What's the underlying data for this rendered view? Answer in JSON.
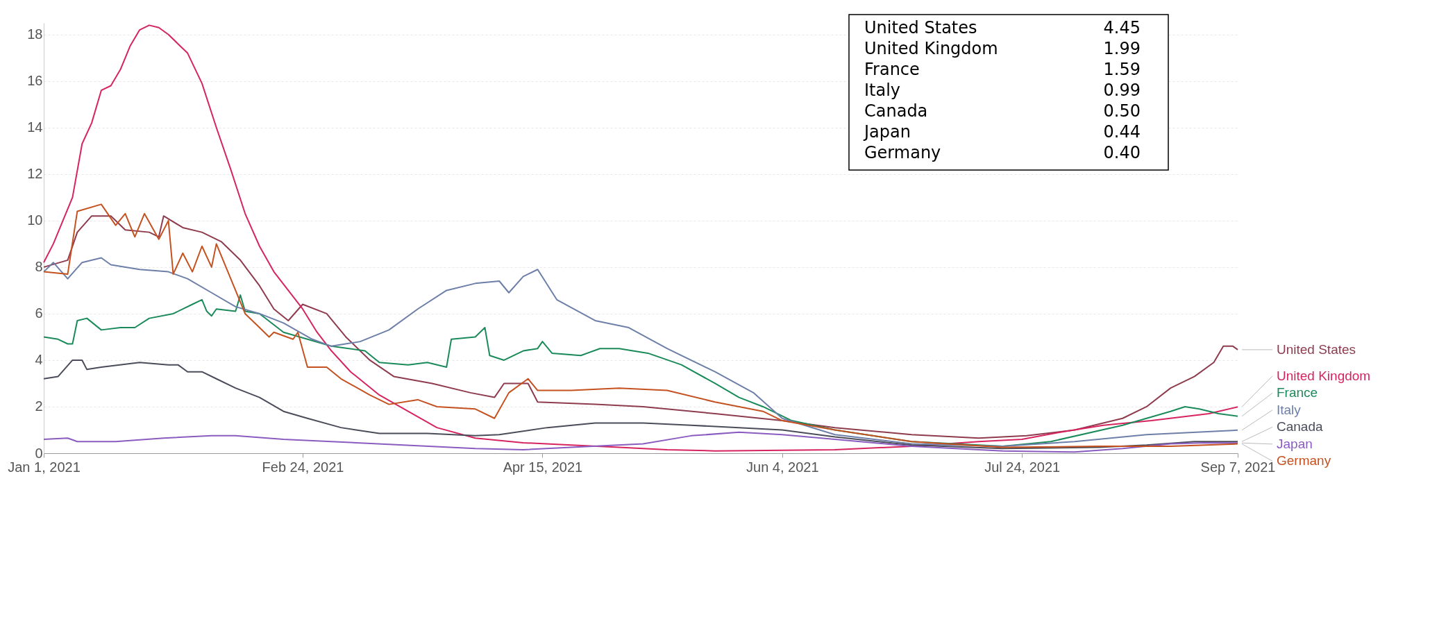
{
  "chart_data": {
    "type": "line",
    "xlim": [
      "2021-01-01",
      "2021-09-07"
    ],
    "xticks": [
      {
        "value": "2021-01-01",
        "label": "Jan 1, 2021"
      },
      {
        "value": "2021-02-24",
        "label": "Feb 24, 2021"
      },
      {
        "value": "2021-04-15",
        "label": "Apr 15, 2021"
      },
      {
        "value": "2021-06-04",
        "label": "Jun 4, 2021"
      },
      {
        "value": "2021-07-24",
        "label": "Jul 24, 2021"
      },
      {
        "value": "2021-09-07",
        "label": "Sep 7, 2021"
      }
    ],
    "ylim": [
      0,
      18.5
    ],
    "yticks": [
      0,
      2,
      4,
      6,
      8,
      10,
      12,
      14,
      16,
      18
    ],
    "grid": "y",
    "legend": "right",
    "line_style": "solid",
    "marker": "none",
    "annotations": [
      "United States 4.45",
      "United Kingdom 1.99",
      "France 1.59",
      "Italy 0.99",
      "Canada 0.50",
      "Japan 0.44",
      "Germany 0.40"
    ],
    "series": [
      {
        "name": "United States",
        "color": "#8e3b4e",
        "x": [
          "2021-01-01",
          "2021-01-06",
          "2021-01-08",
          "2021-01-11",
          "2021-01-15",
          "2021-01-18",
          "2021-01-23",
          "2021-01-25",
          "2021-01-26",
          "2021-01-30",
          "2021-02-03",
          "2021-02-07",
          "2021-02-11",
          "2021-02-15",
          "2021-02-18",
          "2021-02-21",
          "2021-02-24",
          "2021-03-01",
          "2021-03-05",
          "2021-03-10",
          "2021-03-15",
          "2021-03-23",
          "2021-03-31",
          "2021-04-05",
          "2021-04-07",
          "2021-04-12",
          "2021-04-14",
          "2021-04-26",
          "2021-05-06",
          "2021-05-21",
          "2021-06-04",
          "2021-06-15",
          "2021-07-01",
          "2021-07-15",
          "2021-07-25",
          "2021-08-04",
          "2021-08-14",
          "2021-08-19",
          "2021-08-24",
          "2021-08-29",
          "2021-09-02",
          "2021-09-04",
          "2021-09-06",
          "2021-09-07"
        ],
        "values": [
          8.0,
          8.3,
          9.5,
          10.2,
          10.2,
          9.6,
          9.5,
          9.3,
          10.2,
          9.7,
          9.5,
          9.1,
          8.3,
          7.2,
          6.2,
          5.7,
          6.4,
          6.0,
          5.0,
          4.0,
          3.3,
          3.0,
          2.6,
          2.4,
          3.0,
          3.0,
          2.2,
          2.1,
          2.0,
          1.7,
          1.4,
          1.1,
          0.8,
          0.65,
          0.75,
          1.0,
          1.5,
          2.0,
          2.8,
          3.3,
          3.9,
          4.6,
          4.6,
          4.45
        ]
      },
      {
        "name": "United Kingdom",
        "color": "#d6245e",
        "x": [
          "2021-01-01",
          "2021-01-03",
          "2021-01-05",
          "2021-01-07",
          "2021-01-09",
          "2021-01-11",
          "2021-01-13",
          "2021-01-15",
          "2021-01-17",
          "2021-01-19",
          "2021-01-21",
          "2021-01-23",
          "2021-01-25",
          "2021-01-27",
          "2021-01-29",
          "2021-01-31",
          "2021-02-03",
          "2021-02-06",
          "2021-02-09",
          "2021-02-12",
          "2021-02-15",
          "2021-02-18",
          "2021-02-21",
          "2021-02-24",
          "2021-02-27",
          "2021-03-02",
          "2021-03-06",
          "2021-03-12",
          "2021-03-18",
          "2021-03-24",
          "2021-04-01",
          "2021-04-11",
          "2021-04-21",
          "2021-05-01",
          "2021-05-11",
          "2021-05-21",
          "2021-06-15",
          "2021-07-01",
          "2021-07-15",
          "2021-07-24",
          "2021-08-01",
          "2021-08-10",
          "2021-08-20",
          "2021-09-01",
          "2021-09-07"
        ],
        "values": [
          8.2,
          9.0,
          10.0,
          11.0,
          13.3,
          14.2,
          15.6,
          15.8,
          16.5,
          17.5,
          18.2,
          18.4,
          18.3,
          18.0,
          17.6,
          17.2,
          15.9,
          14.0,
          12.2,
          10.3,
          8.9,
          7.8,
          7.0,
          6.2,
          5.2,
          4.4,
          3.5,
          2.5,
          1.8,
          1.1,
          0.65,
          0.45,
          0.35,
          0.25,
          0.15,
          0.1,
          0.15,
          0.3,
          0.5,
          0.6,
          0.9,
          1.2,
          1.4,
          1.7,
          1.99
        ]
      },
      {
        "name": "France",
        "color": "#1b8a5a",
        "x": [
          "2021-01-01",
          "2021-01-04",
          "2021-01-06",
          "2021-01-07",
          "2021-01-08",
          "2021-01-10",
          "2021-01-13",
          "2021-01-17",
          "2021-01-20",
          "2021-01-23",
          "2021-01-28",
          "2021-02-01",
          "2021-02-03",
          "2021-02-04",
          "2021-02-05",
          "2021-02-06",
          "2021-02-10",
          "2021-02-11",
          "2021-02-12",
          "2021-02-15",
          "2021-02-20",
          "2021-02-25",
          "2021-03-02",
          "2021-03-09",
          "2021-03-12",
          "2021-03-18",
          "2021-03-22",
          "2021-03-26",
          "2021-03-27",
          "2021-04-01",
          "2021-04-03",
          "2021-04-04",
          "2021-04-07",
          "2021-04-11",
          "2021-04-14",
          "2021-04-15",
          "2021-04-17",
          "2021-04-23",
          "2021-04-27",
          "2021-05-01",
          "2021-05-07",
          "2021-05-14",
          "2021-05-21",
          "2021-05-26",
          "2021-05-31",
          "2021-06-06",
          "2021-06-15",
          "2021-07-01",
          "2021-07-20",
          "2021-07-30",
          "2021-08-14",
          "2021-08-24",
          "2021-08-27",
          "2021-08-30",
          "2021-09-03",
          "2021-09-07"
        ],
        "values": [
          5.0,
          4.9,
          4.7,
          4.7,
          5.7,
          5.8,
          5.3,
          5.4,
          5.4,
          5.8,
          6.0,
          6.4,
          6.6,
          6.1,
          5.9,
          6.2,
          6.1,
          6.8,
          6.1,
          6.0,
          5.2,
          4.9,
          4.6,
          4.4,
          3.9,
          3.8,
          3.9,
          3.7,
          4.9,
          5.0,
          5.4,
          4.2,
          4.0,
          4.4,
          4.5,
          4.8,
          4.3,
          4.2,
          4.5,
          4.5,
          4.3,
          3.8,
          3.0,
          2.4,
          2.0,
          1.4,
          1.0,
          0.5,
          0.3,
          0.5,
          1.2,
          1.8,
          2.0,
          1.9,
          1.7,
          1.59
        ]
      },
      {
        "name": "Italy",
        "color": "#6d7fa8",
        "x": [
          "2021-01-01",
          "2021-01-03",
          "2021-01-06",
          "2021-01-09",
          "2021-01-13",
          "2021-01-15",
          "2021-01-21",
          "2021-01-27",
          "2021-01-31",
          "2021-02-05",
          "2021-02-10",
          "2021-02-15",
          "2021-02-20",
          "2021-02-26",
          "2021-03-02",
          "2021-03-08",
          "2021-03-14",
          "2021-03-20",
          "2021-03-26",
          "2021-04-01",
          "2021-04-06",
          "2021-04-08",
          "2021-04-11",
          "2021-04-14",
          "2021-04-18",
          "2021-04-26",
          "2021-05-03",
          "2021-05-11",
          "2021-05-21",
          "2021-05-29",
          "2021-06-04",
          "2021-06-15",
          "2021-07-01",
          "2021-07-20",
          "2021-08-04",
          "2021-08-19",
          "2021-09-07"
        ],
        "values": [
          7.8,
          8.2,
          7.5,
          8.2,
          8.4,
          8.1,
          7.9,
          7.8,
          7.5,
          6.9,
          6.3,
          6.0,
          5.6,
          4.9,
          4.6,
          4.8,
          5.3,
          6.2,
          7.0,
          7.3,
          7.4,
          6.9,
          7.6,
          7.9,
          6.6,
          5.7,
          5.4,
          4.5,
          3.5,
          2.6,
          1.5,
          0.8,
          0.4,
          0.3,
          0.5,
          0.8,
          0.99
        ]
      },
      {
        "name": "Canada",
        "color": "#4a4c5a",
        "x": [
          "2021-01-01",
          "2021-01-04",
          "2021-01-07",
          "2021-01-09",
          "2021-01-10",
          "2021-01-13",
          "2021-01-21",
          "2021-01-27",
          "2021-01-29",
          "2021-01-31",
          "2021-02-03",
          "2021-02-06",
          "2021-02-10",
          "2021-02-15",
          "2021-02-20",
          "2021-02-25",
          "2021-03-04",
          "2021-03-12",
          "2021-03-22",
          "2021-04-01",
          "2021-04-06",
          "2021-04-16",
          "2021-04-26",
          "2021-05-06",
          "2021-05-16",
          "2021-05-26",
          "2021-06-04",
          "2021-06-15",
          "2021-07-01",
          "2021-07-20",
          "2021-08-09",
          "2021-08-19",
          "2021-08-29",
          "2021-09-07"
        ],
        "values": [
          3.2,
          3.3,
          4.0,
          4.0,
          3.6,
          3.7,
          3.9,
          3.8,
          3.8,
          3.5,
          3.5,
          3.2,
          2.8,
          2.4,
          1.8,
          1.5,
          1.1,
          0.85,
          0.85,
          0.75,
          0.8,
          1.1,
          1.3,
          1.3,
          1.2,
          1.1,
          1.0,
          0.7,
          0.35,
          0.2,
          0.25,
          0.35,
          0.5,
          0.5
        ]
      },
      {
        "name": "Japan",
        "color": "#8a5cc0",
        "x": [
          "2021-01-01",
          "2021-01-06",
          "2021-01-08",
          "2021-01-16",
          "2021-01-26",
          "2021-02-05",
          "2021-02-10",
          "2021-02-20",
          "2021-03-02",
          "2021-03-17",
          "2021-04-01",
          "2021-04-11",
          "2021-04-21",
          "2021-05-06",
          "2021-05-16",
          "2021-05-26",
          "2021-06-04",
          "2021-06-15",
          "2021-07-01",
          "2021-07-20",
          "2021-08-04",
          "2021-08-14",
          "2021-08-24",
          "2021-08-31",
          "2021-09-07"
        ],
        "values": [
          0.6,
          0.65,
          0.5,
          0.5,
          0.65,
          0.75,
          0.75,
          0.6,
          0.5,
          0.35,
          0.2,
          0.15,
          0.25,
          0.4,
          0.75,
          0.9,
          0.8,
          0.6,
          0.3,
          0.1,
          0.05,
          0.2,
          0.4,
          0.45,
          0.44
        ]
      },
      {
        "name": "Germany",
        "color": "#c4511f",
        "x": [
          "2021-01-01",
          "2021-01-06",
          "2021-01-08",
          "2021-01-13",
          "2021-01-16",
          "2021-01-18",
          "2021-01-20",
          "2021-01-22",
          "2021-01-25",
          "2021-01-27",
          "2021-01-28",
          "2021-01-30",
          "2021-02-01",
          "2021-02-03",
          "2021-02-05",
          "2021-02-06",
          "2021-02-08",
          "2021-02-10",
          "2021-02-12",
          "2021-02-15",
          "2021-02-17",
          "2021-02-18",
          "2021-02-22",
          "2021-02-23",
          "2021-02-25",
          "2021-03-01",
          "2021-03-04",
          "2021-03-10",
          "2021-03-14",
          "2021-03-20",
          "2021-03-24",
          "2021-04-01",
          "2021-04-05",
          "2021-04-08",
          "2021-04-12",
          "2021-04-14",
          "2021-04-21",
          "2021-05-01",
          "2021-05-11",
          "2021-05-21",
          "2021-05-31",
          "2021-06-04",
          "2021-06-15",
          "2021-07-01",
          "2021-07-20",
          "2021-08-09",
          "2021-08-24",
          "2021-09-07"
        ],
        "values": [
          7.8,
          7.7,
          10.4,
          10.7,
          9.8,
          10.3,
          9.3,
          10.3,
          9.2,
          10.0,
          7.7,
          8.6,
          7.8,
          8.9,
          8.0,
          9.0,
          8.0,
          7.0,
          6.0,
          5.4,
          5.0,
          5.2,
          4.9,
          5.2,
          3.7,
          3.7,
          3.2,
          2.5,
          2.1,
          2.3,
          2.0,
          1.9,
          1.5,
          2.6,
          3.2,
          2.7,
          2.7,
          2.8,
          2.7,
          2.2,
          1.8,
          1.4,
          1.0,
          0.5,
          0.25,
          0.3,
          0.3,
          0.4
        ]
      }
    ]
  }
}
